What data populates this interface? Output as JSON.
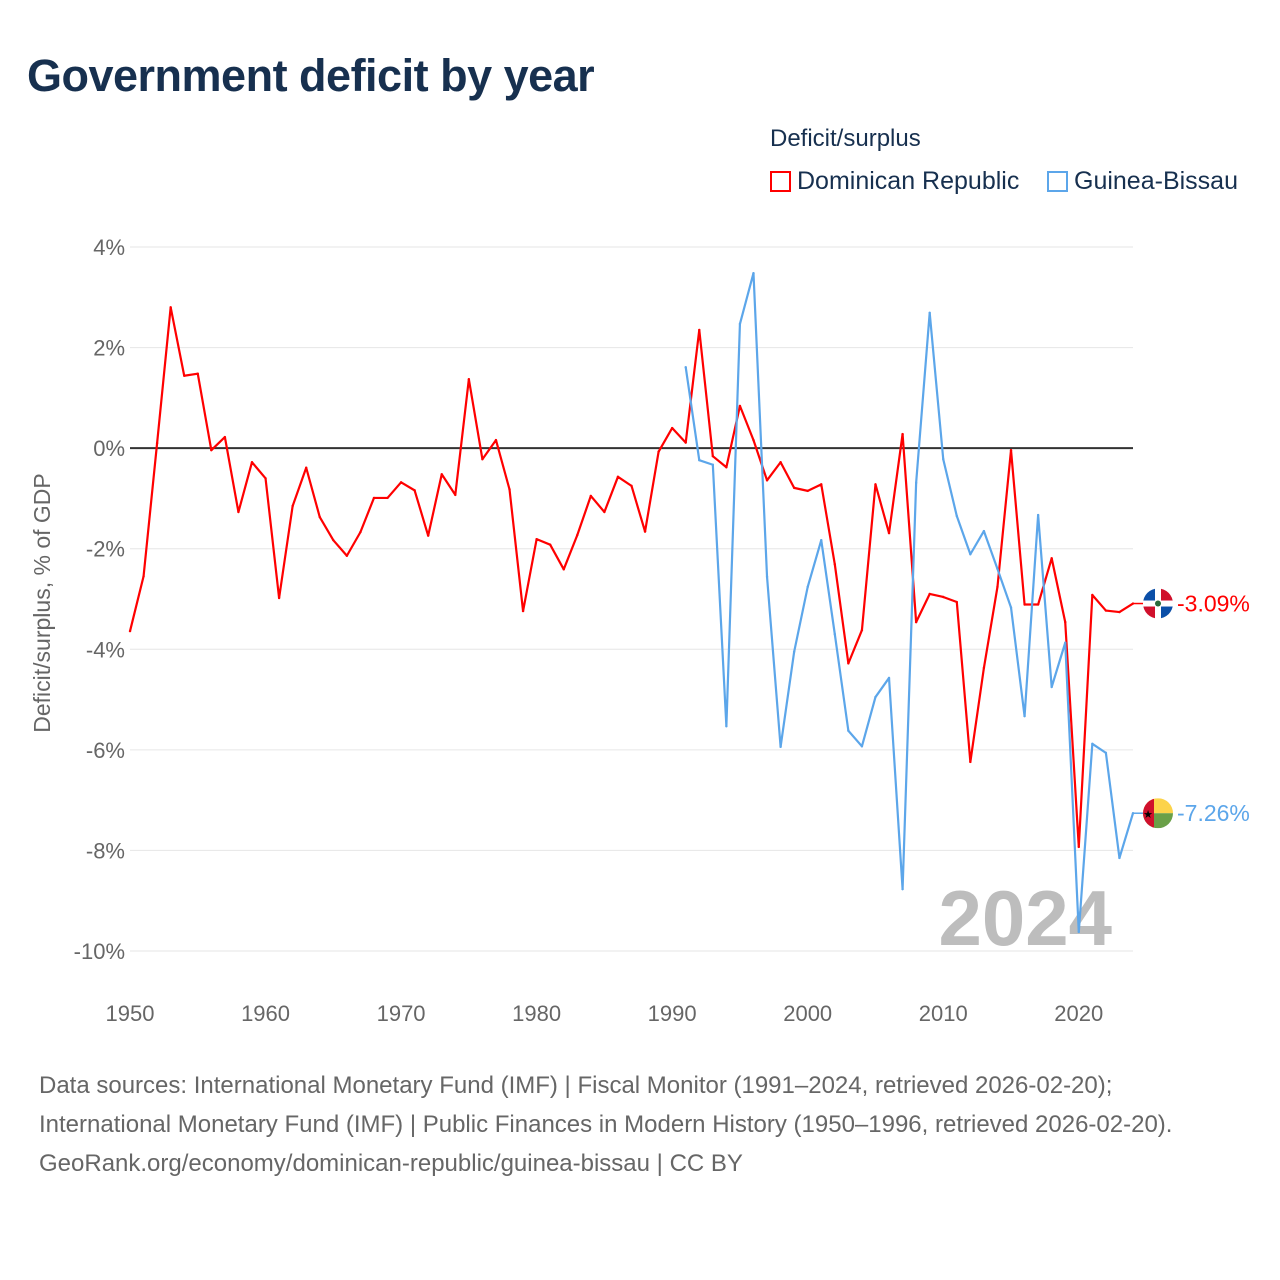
{
  "title": "Government deficit by year",
  "legend": {
    "title": "Deficit/surplus",
    "items": [
      {
        "name": "Dominican Republic",
        "color": "#ff0000"
      },
      {
        "name": "Guinea-Bissau",
        "color": "#5ca6ea"
      }
    ]
  },
  "chart_data": {
    "type": "line",
    "title": "Government deficit by year",
    "xlabel": "",
    "ylabel": "Deficit/surplus, % of GDP",
    "xlim": [
      1950,
      2024
    ],
    "ylim": [
      -10,
      4
    ],
    "x_ticks": [
      "1950",
      "1960",
      "1970",
      "1980",
      "1990",
      "2000",
      "2010",
      "2020"
    ],
    "y_ticks": [
      {
        "value": 4,
        "label": "4%"
      },
      {
        "value": 2,
        "label": "2%"
      },
      {
        "value": 0,
        "label": "0%"
      },
      {
        "value": -2,
        "label": "-2%"
      },
      {
        "value": -4,
        "label": "-4%"
      },
      {
        "value": -6,
        "label": "-6%"
      },
      {
        "value": -8,
        "label": "-8%"
      },
      {
        "value": -10,
        "label": "-10%"
      }
    ],
    "grid": true,
    "legend_position": "top-right",
    "year_watermark": "2024",
    "series": [
      {
        "name": "Dominican Republic",
        "color": "#ff0000",
        "end_label": "-3.09%",
        "start_year": 1950,
        "values": [
          -3.64,
          -2.55,
          0.1,
          2.8,
          1.44,
          1.48,
          -0.04,
          0.22,
          -1.27,
          -0.28,
          -0.6,
          -2.98,
          -1.15,
          -0.39,
          -1.37,
          -1.83,
          -2.14,
          -1.67,
          -0.99,
          -0.99,
          -0.68,
          -0.84,
          -1.74,
          -0.52,
          -0.93,
          1.37,
          -0.22,
          0.16,
          -0.82,
          -3.24,
          -1.81,
          -1.92,
          -2.41,
          -1.73,
          -0.95,
          -1.27,
          -0.57,
          -0.75,
          -1.66,
          -0.07,
          0.4,
          0.11,
          2.35,
          -0.16,
          -0.38,
          0.84,
          0.16,
          -0.64,
          -0.28,
          -0.79,
          -0.85,
          -0.72,
          -2.31,
          -4.28,
          -3.62,
          -0.72,
          -1.69,
          0.28,
          -3.46,
          -2.9,
          -2.96,
          -3.06,
          -6.24,
          -4.37,
          -2.76,
          -0.04,
          -3.11,
          -3.11,
          -2.19,
          -3.46,
          -7.93,
          -2.92,
          -3.23,
          -3.26,
          -3.09
        ]
      },
      {
        "name": "Guinea-Bissau",
        "color": "#5ca6ea",
        "end_label": "-7.26%",
        "start_year": 1991,
        "values": [
          1.61,
          -0.24,
          -0.33,
          -5.53,
          2.47,
          3.48,
          -2.56,
          -5.94,
          -4.05,
          -2.76,
          -1.83,
          -3.7,
          -5.62,
          -5.93,
          -4.95,
          -4.57,
          -8.77,
          -0.69,
          2.69,
          -0.22,
          -1.35,
          -2.11,
          -1.65,
          -2.4,
          -3.17,
          -5.33,
          -1.33,
          -4.75,
          -3.87,
          -9.62,
          -5.88,
          -6.06,
          -8.15,
          -7.26
        ]
      }
    ]
  },
  "footer": {
    "sources": "Data sources: International Monetary Fund (IMF) | Fiscal Monitor (1991–2024, retrieved 2026-02-20); International Monetary Fund (IMF) | Public Finances in Modern History (1950–1996, retrieved 2026-02-20).",
    "credit": "GeoRank.org/economy/dominican-republic/guinea-bissau | CC BY"
  }
}
